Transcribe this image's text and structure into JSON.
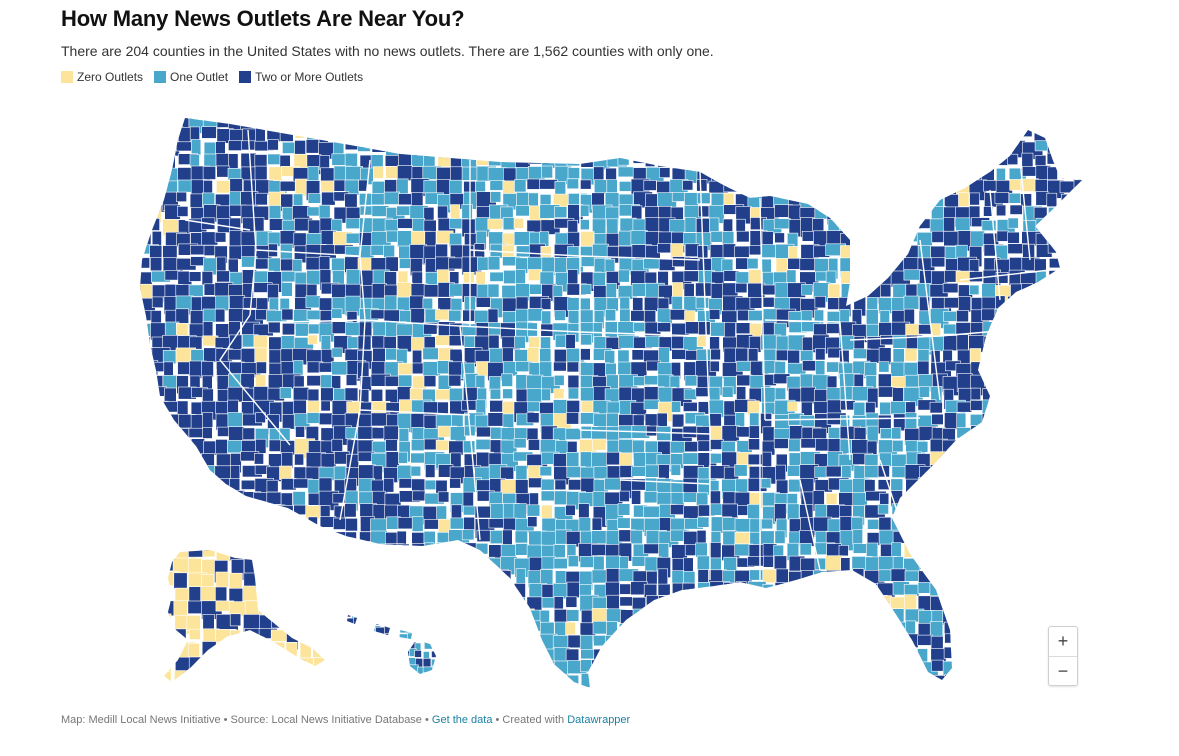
{
  "title": "How Many News Outlets Are Near You?",
  "subtitle": "There are 204 counties in the United States with no news outlets. There are 1,562 counties with only one.",
  "legend": [
    {
      "label": "Zero Outlets",
      "color": "#fde49b"
    },
    {
      "label": "One Outlet",
      "color": "#4aa7cc"
    },
    {
      "label": "Two or More Outlets",
      "color": "#223f8b"
    }
  ],
  "zoom": {
    "in_label": "+",
    "out_label": "−"
  },
  "footer": {
    "map_credit": "Map: Medill Local News Initiative",
    "sep1": " • ",
    "source": "Source: Local News Initiative Database",
    "sep2": " • ",
    "data_link": "Get the data",
    "sep3": " • ",
    "created_with": "Created with ",
    "tool_link": "Datawrapper"
  },
  "colors": {
    "zero": "#fde49b",
    "one": "#4aa7cc",
    "two_plus": "#223f8b",
    "border": "#ffffff"
  }
}
